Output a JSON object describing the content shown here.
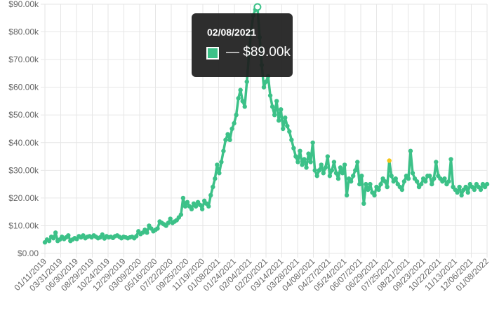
{
  "chart_data": {
    "type": "line",
    "title": "",
    "xlabel": "",
    "ylabel": "",
    "ylim": [
      0,
      90000
    ],
    "y_ticks": [
      "$0.00",
      "$10.00k",
      "$20.00k",
      "$30.00k",
      "$40.00k",
      "$50.00k",
      "$60.00k",
      "$70.00k",
      "$80.00k",
      "$90.00k"
    ],
    "x_ticks": [
      "01/11/2019",
      "03/31/2019",
      "06/30/2019",
      "08/29/2019",
      "10/24/2019",
      "12/29/2019",
      "03/09/2020",
      "05/16/2020",
      "07/22/2020",
      "09/25/2020",
      "11/19/2020",
      "01/08/2021",
      "01/24/2021",
      "02/04/2021",
      "02/20/2021",
      "03/14/2021",
      "03/28/2021",
      "04/08/2021",
      "04/27/2021",
      "05/24/2021",
      "06/07/2021",
      "06/29/2021",
      "07/25/2021",
      "08/21/2021",
      "09/23/2021",
      "10/22/2021",
      "11/13/2021",
      "12/06/2021",
      "01/08/2022"
    ],
    "grid": true,
    "colors": {
      "line": "#3cc188",
      "highlight": "#f5c518"
    },
    "series": [
      {
        "values": [
          4000,
          5000,
          4500,
          6000,
          5500,
          7500,
          4500,
          5000,
          6000,
          5200,
          5800,
          6500,
          4500,
          5000,
          5500,
          5200,
          6200,
          5800,
          6500,
          5500,
          6000,
          6200,
          5800,
          6500,
          6000,
          5500,
          5800,
          6800,
          5400,
          6200,
          5800,
          6000,
          5600,
          6200,
          6500,
          6000,
          5500,
          6000,
          5800,
          5500,
          5800,
          6000,
          5500,
          6200,
          8000,
          7000,
          7500,
          8500,
          7500,
          10000,
          9000,
          8000,
          8500,
          9000,
          11500,
          11000,
          10500,
          10000,
          11000,
          12500,
          11000,
          11500,
          12000,
          13000,
          14000,
          20000,
          17000,
          18500,
          17000,
          16000,
          18000,
          17000,
          18500,
          17500,
          16000,
          19000,
          18000,
          17000,
          21000,
          24000,
          27000,
          32000,
          29000,
          33000,
          37000,
          41000,
          43000,
          41000,
          45000,
          47000,
          50000,
          56000,
          59000,
          55000,
          53000,
          62000,
          72000,
          80000,
          86000,
          88000,
          89000,
          78000,
          68000,
          60000,
          62000,
          64000,
          57000,
          53000,
          50000,
          55000,
          48000,
          52000,
          45000,
          49000,
          46000,
          44000,
          41000,
          38000,
          35000,
          33000,
          37000,
          32000,
          34000,
          31000,
          36000,
          33000,
          40000,
          30000,
          28000,
          30000,
          32000,
          29000,
          31000,
          35000,
          28000,
          30000,
          33000,
          29000,
          27000,
          31000,
          29000,
          32000,
          21000,
          27000,
          26000,
          28000,
          30000,
          33000,
          25000,
          28000,
          18000,
          25000,
          23000,
          25000,
          22000,
          21000,
          24000,
          23000,
          25000,
          27000,
          26000,
          24000,
          33500,
          28000,
          26000,
          27000,
          25000,
          24000,
          23000,
          26000,
          28000,
          27000,
          37000,
          29000,
          27000,
          26000,
          24000,
          25000,
          27000,
          26000,
          28000,
          28000,
          25000,
          27000,
          33000,
          28000,
          27000,
          26000,
          27000,
          25000,
          26000,
          34000,
          24000,
          23000,
          22000,
          24000,
          21000,
          23000,
          24000,
          22000,
          25000,
          24000,
          23000,
          25000,
          24000,
          23000,
          25000,
          24000,
          25000
        ],
        "highlight_index": 162
      }
    ],
    "tooltip": {
      "title": "02/08/2021",
      "value": "— $89.00k",
      "index": 100
    }
  }
}
